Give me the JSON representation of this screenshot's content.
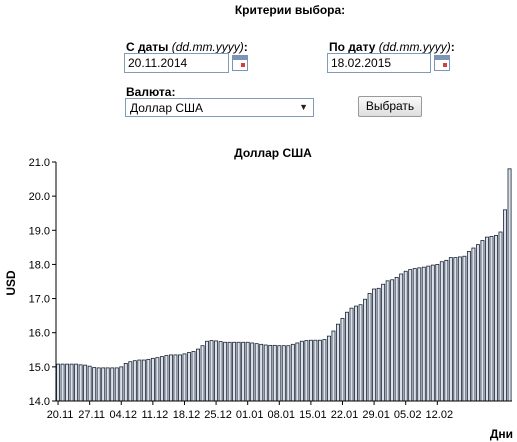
{
  "form": {
    "title": "Критерии выбора:",
    "from_label": "С даты",
    "to_label": "По дату",
    "date_format": "(dd.mm.yyyy)",
    "colon": ":",
    "from_value": "20.11.2014",
    "to_value": "18.02.2015",
    "currency_label": "Валюта:",
    "currency_value": "Доллар США",
    "submit_label": "Выбрать"
  },
  "icons": {
    "calendar": "calendar-icon",
    "dropdown": "chevron-down-icon"
  },
  "colors": {
    "bar_fill": "#dde3ec",
    "bar_stroke": "#1a2233"
  },
  "chart_data": {
    "type": "bar",
    "title": "Доллар США",
    "ylabel": "USD",
    "xlabel": "Дни",
    "ylim": [
      14.0,
      21.0
    ],
    "yticks": [
      "14.0",
      "15.0",
      "16.0",
      "17.0",
      "18.0",
      "19.0",
      "20.0",
      "21.0"
    ],
    "xtick_labels": [
      "20.11",
      "27.11",
      "04.12",
      "11.12",
      "18.12",
      "25.12",
      "01.01",
      "08.01",
      "15.01",
      "22.01",
      "29.01",
      "05.02",
      "12.02"
    ],
    "grid": false,
    "values": [
      15.08,
      15.08,
      15.08,
      15.08,
      15.08,
      15.06,
      15.05,
      15.02,
      14.98,
      14.97,
      14.97,
      14.97,
      14.97,
      14.97,
      15.0,
      15.1,
      15.15,
      15.18,
      15.2,
      15.2,
      15.22,
      15.25,
      15.27,
      15.3,
      15.33,
      15.35,
      15.35,
      15.35,
      15.38,
      15.42,
      15.45,
      15.52,
      15.62,
      15.75,
      15.77,
      15.76,
      15.74,
      15.72,
      15.72,
      15.72,
      15.72,
      15.72,
      15.72,
      15.7,
      15.68,
      15.66,
      15.64,
      15.63,
      15.63,
      15.62,
      15.62,
      15.62,
      15.66,
      15.7,
      15.75,
      15.77,
      15.78,
      15.78,
      15.78,
      15.8,
      15.9,
      16.05,
      16.25,
      16.42,
      16.6,
      16.72,
      16.78,
      16.82,
      16.98,
      17.15,
      17.28,
      17.3,
      17.42,
      17.52,
      17.55,
      17.62,
      17.72,
      17.8,
      17.85,
      17.88,
      17.9,
      17.92,
      17.95,
      17.98,
      18.0,
      18.08,
      18.12,
      18.2,
      18.2,
      18.22,
      18.24,
      18.38,
      18.48,
      18.58,
      18.7,
      18.8,
      18.82,
      18.85,
      18.95,
      19.6,
      20.8
    ]
  }
}
